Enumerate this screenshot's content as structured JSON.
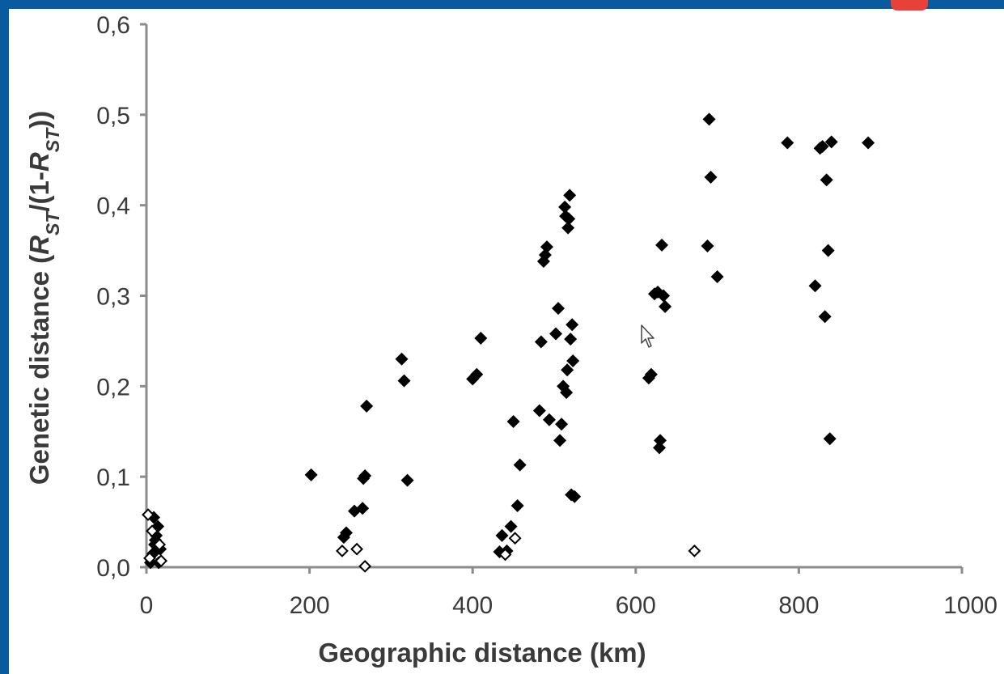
{
  "frame": {
    "accent_color": "#0a5aa0",
    "marker_color": "#e8413a"
  },
  "cursor": {
    "icon": "pointer-arrow-icon"
  },
  "chart_data": {
    "type": "scatter",
    "title": "",
    "xlabel": "Geographic distance (km)",
    "ylabel": {
      "prefix": "Genetic distance (",
      "r1": "R",
      "s1": "ST",
      "mid": "/(1-",
      "r2": "R",
      "s2": "ST",
      "suffix": "))"
    },
    "xlim": [
      0,
      1000
    ],
    "ylim": [
      0.0,
      0.6
    ],
    "x_ticks": [
      "0",
      "200",
      "400",
      "600",
      "800",
      "1000"
    ],
    "y_ticks": [
      "0,0",
      "0,1",
      "0,2",
      "0,3",
      "0,4",
      "0,5",
      "0,6"
    ],
    "grid": false,
    "legend": "none",
    "series": [
      {
        "marker": "filled-diamond",
        "color": "#000000",
        "points": [
          [
            5,
            0.005
          ],
          [
            8,
            0.015
          ],
          [
            10,
            0.025
          ],
          [
            12,
            0.035
          ],
          [
            14,
            0.045
          ],
          [
            9,
            0.055
          ],
          [
            15,
            0.005
          ],
          [
            17,
            0.02
          ],
          [
            11,
            0.03
          ],
          [
            202,
            0.102
          ],
          [
            242,
            0.033
          ],
          [
            245,
            0.038
          ],
          [
            255,
            0.062
          ],
          [
            265,
            0.065
          ],
          [
            266,
            0.098
          ],
          [
            268,
            0.101
          ],
          [
            270,
            0.178
          ],
          [
            313,
            0.23
          ],
          [
            316,
            0.206
          ],
          [
            320,
            0.096
          ],
          [
            400,
            0.208
          ],
          [
            405,
            0.213
          ],
          [
            410,
            0.253
          ],
          [
            433,
            0.017
          ],
          [
            436,
            0.035
          ],
          [
            442,
            0.018
          ],
          [
            447,
            0.045
          ],
          [
            450,
            0.161
          ],
          [
            455,
            0.068
          ],
          [
            458,
            0.113
          ],
          [
            482,
            0.173
          ],
          [
            484,
            0.249
          ],
          [
            487,
            0.338
          ],
          [
            489,
            0.345
          ],
          [
            491,
            0.354
          ],
          [
            494,
            0.163
          ],
          [
            502,
            0.258
          ],
          [
            505,
            0.286
          ],
          [
            507,
            0.14
          ],
          [
            509,
            0.158
          ],
          [
            511,
            0.2
          ],
          [
            513,
            0.398
          ],
          [
            514,
            0.388
          ],
          [
            515,
            0.193
          ],
          [
            516,
            0.218
          ],
          [
            517,
            0.375
          ],
          [
            518,
            0.385
          ],
          [
            519,
            0.411
          ],
          [
            520,
            0.252
          ],
          [
            521,
            0.08
          ],
          [
            522,
            0.268
          ],
          [
            523,
            0.228
          ],
          [
            525,
            0.078
          ],
          [
            616,
            0.209
          ],
          [
            619,
            0.213
          ],
          [
            623,
            0.302
          ],
          [
            627,
            0.304
          ],
          [
            629,
            0.132
          ],
          [
            630,
            0.14
          ],
          [
            632,
            0.356
          ],
          [
            634,
            0.3
          ],
          [
            636,
            0.288
          ],
          [
            688,
            0.355
          ],
          [
            690,
            0.495
          ],
          [
            692,
            0.431
          ],
          [
            700,
            0.321
          ],
          [
            786,
            0.469
          ],
          [
            820,
            0.311
          ],
          [
            826,
            0.463
          ],
          [
            829,
            0.465
          ],
          [
            832,
            0.277
          ],
          [
            834,
            0.428
          ],
          [
            836,
            0.35
          ],
          [
            838,
            0.142
          ],
          [
            840,
            0.47
          ],
          [
            885,
            0.469
          ]
        ]
      },
      {
        "marker": "open-diamond",
        "color": "#000000",
        "points": [
          [
            2,
            0.058
          ],
          [
            4,
            0.01
          ],
          [
            7,
            0.04
          ],
          [
            16,
            0.025
          ],
          [
            18,
            0.007
          ],
          [
            240,
            0.018
          ],
          [
            258,
            0.02
          ],
          [
            268,
            0.001
          ],
          [
            440,
            0.014
          ],
          [
            452,
            0.032
          ],
          [
            672,
            0.018
          ]
        ]
      }
    ]
  }
}
